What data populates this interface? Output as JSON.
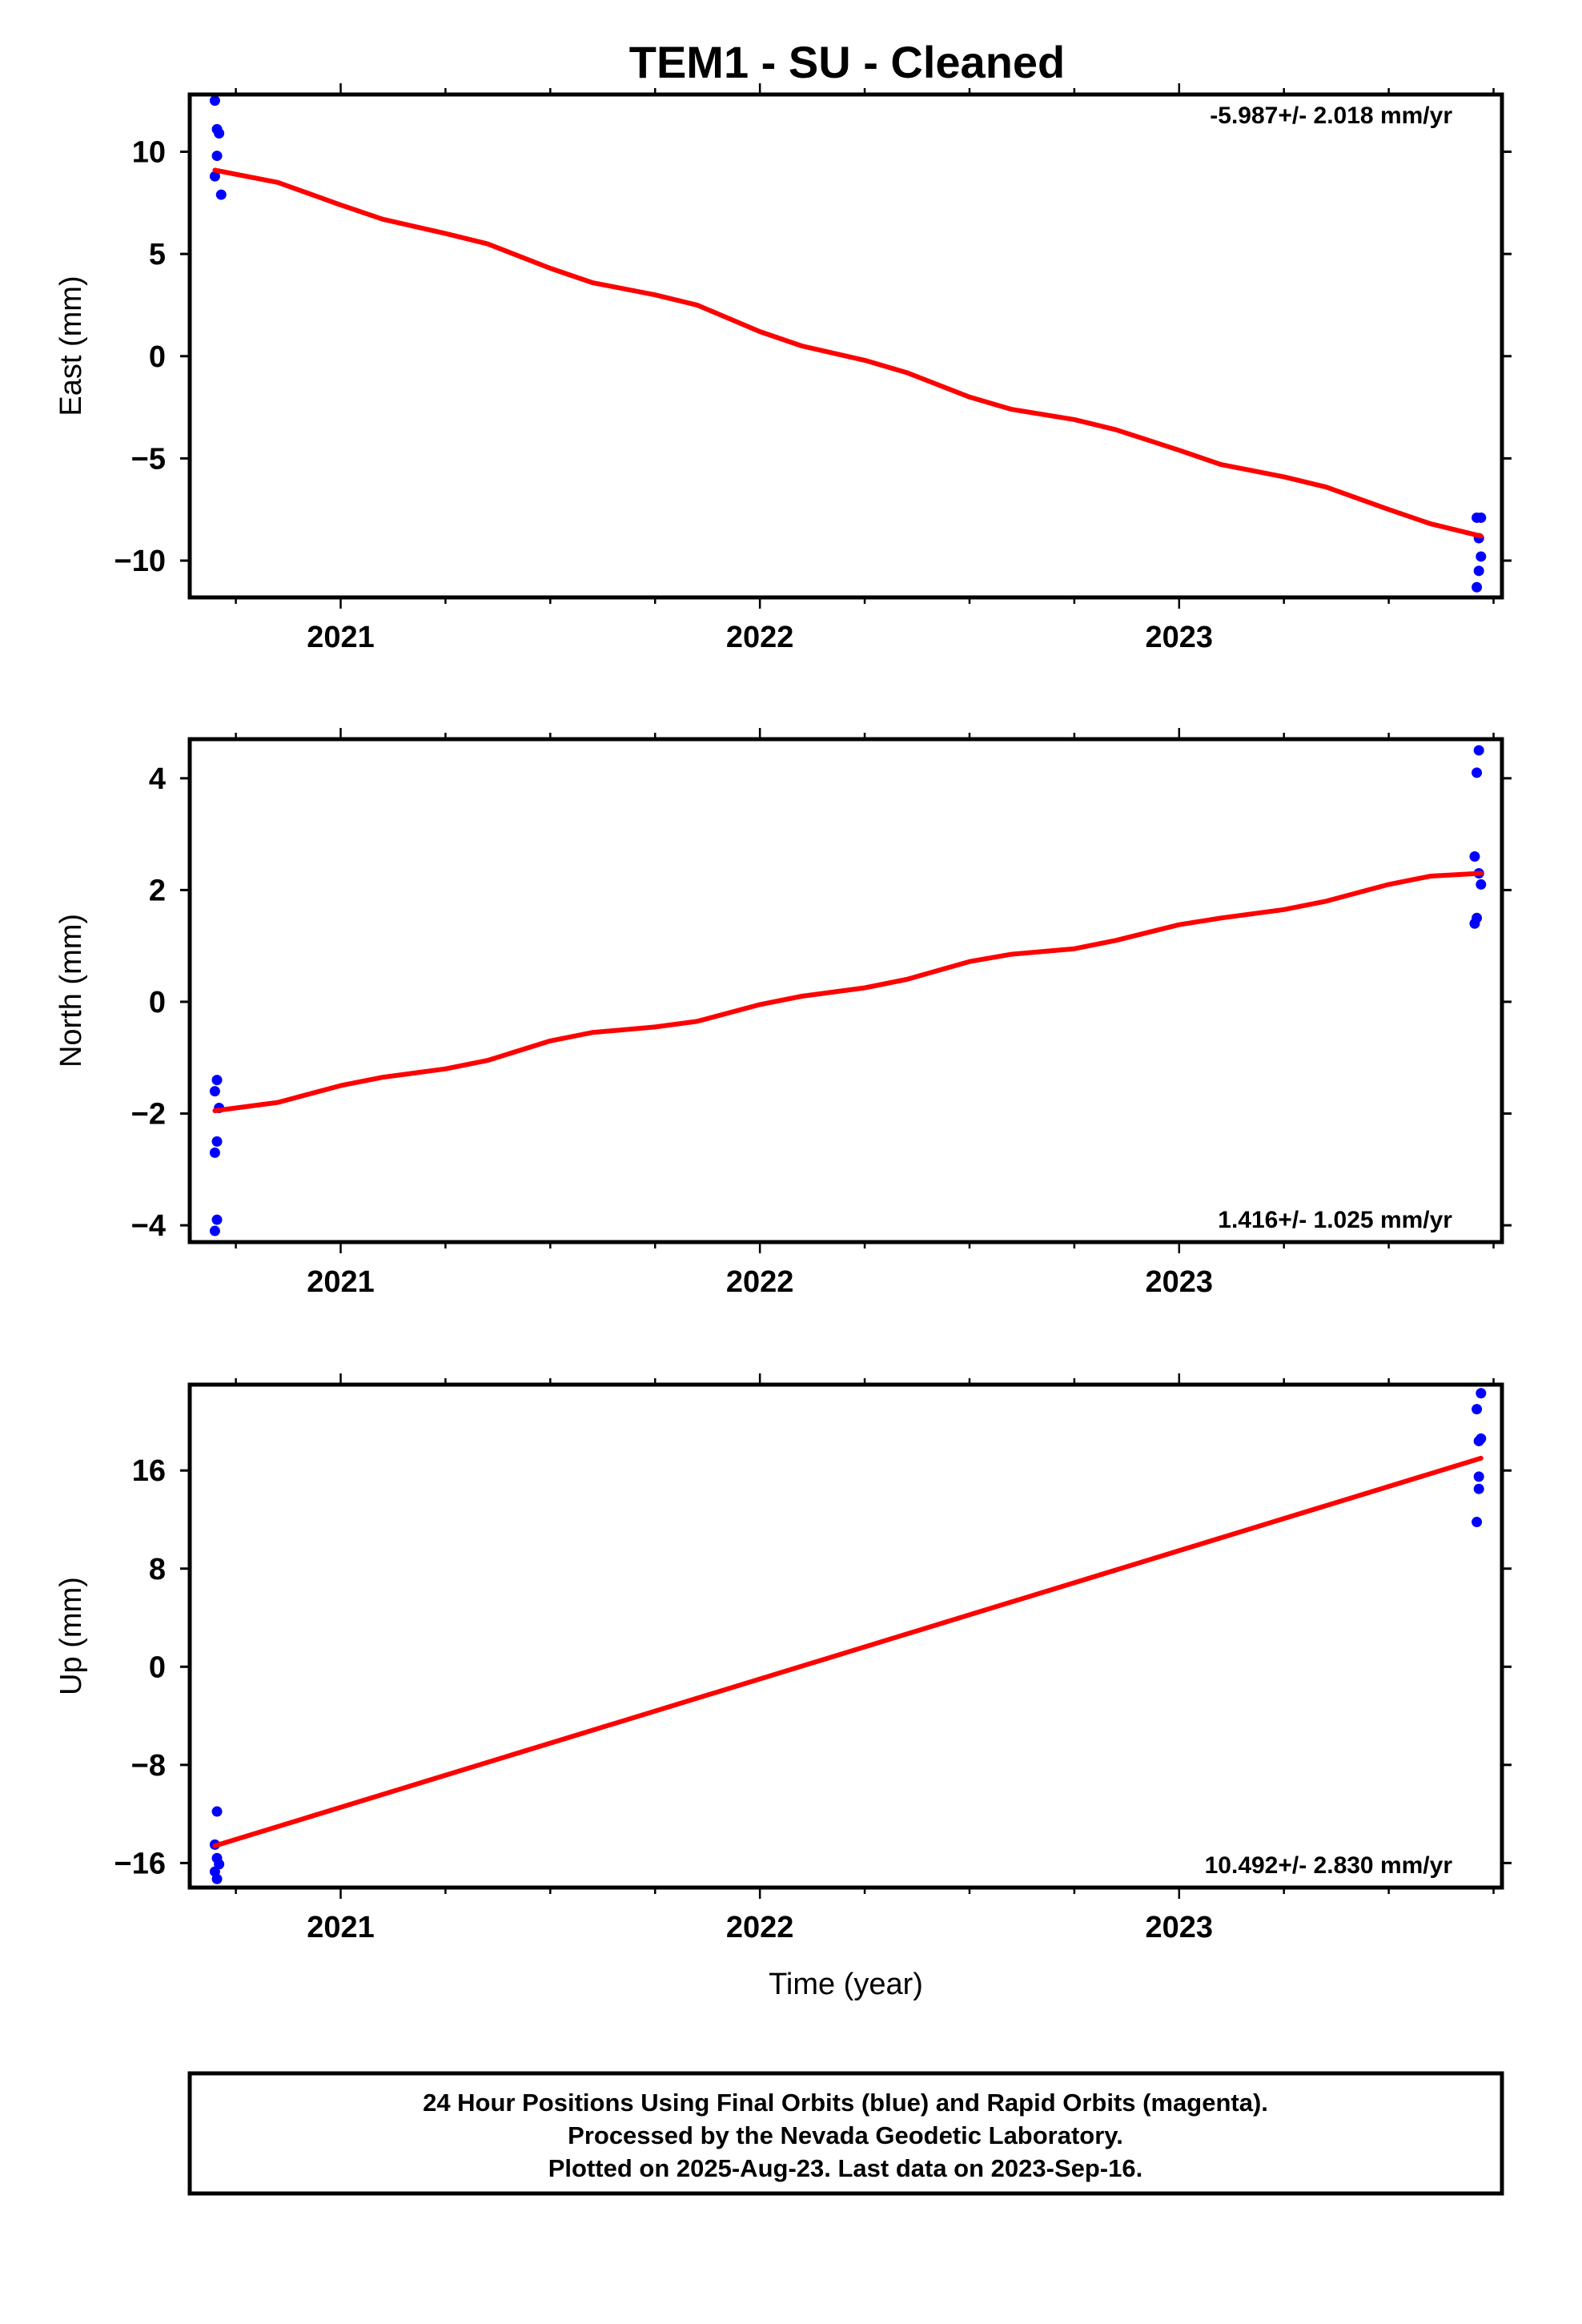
{
  "title": "TEM1  - SU - Cleaned",
  "colors": {
    "final_orbit": "#0000ff",
    "fit_line": "#ff0000",
    "frame": "#000000"
  },
  "footer": {
    "line1": "24 Hour Positions Using Final Orbits (blue) and Rapid Orbits (magenta).",
    "line2": "Processed by the Nevada Geodetic Laboratory.",
    "line3": "Plotted on 2025-Aug-23. Last data on 2023-Sep-16."
  },
  "chart_data": [
    {
      "type": "scatter",
      "ylabel": "East (mm)",
      "xlabel": "",
      "xlim": [
        2020.64,
        2023.77
      ],
      "ylim": [
        -11.8,
        12.8
      ],
      "xticks": [
        2021,
        2022,
        2023
      ],
      "xtick_labels": [
        "2021",
        "2022",
        "2023"
      ],
      "yticks": [
        -10,
        -5,
        0,
        5,
        10
      ],
      "ytick_labels": [
        "−10",
        "−5",
        "0",
        "5",
        "10"
      ],
      "rate": "-5.987+/- 2.018 mm/yr",
      "rate_position": "top-right",
      "series": [
        {
          "style": "points",
          "color": "#0000ff",
          "x": [
            2020.7,
            2020.705,
            2020.71,
            2020.705,
            2020.7,
            2020.715,
            2023.71,
            2023.715,
            2023.72,
            2023.715,
            2023.72,
            2023.71
          ],
          "y": [
            12.5,
            11.1,
            10.9,
            9.8,
            8.8,
            7.9,
            -7.9,
            -8.9,
            -9.8,
            -10.5,
            -7.9,
            -11.3
          ]
        },
        {
          "style": "line",
          "color": "#ff0000",
          "x": [
            2020.7,
            2020.85,
            2021.0,
            2021.1,
            2021.25,
            2021.35,
            2021.5,
            2021.6,
            2021.75,
            2021.85,
            2022.0,
            2022.1,
            2022.25,
            2022.35,
            2022.5,
            2022.6,
            2022.75,
            2022.85,
            2023.0,
            2023.1,
            2023.25,
            2023.35,
            2023.5,
            2023.6,
            2023.72
          ],
          "y": [
            9.1,
            8.5,
            7.4,
            6.7,
            6.0,
            5.5,
            4.3,
            3.6,
            3.0,
            2.5,
            1.2,
            0.5,
            -0.2,
            -0.8,
            -2.0,
            -2.6,
            -3.1,
            -3.6,
            -4.6,
            -5.3,
            -5.9,
            -6.4,
            -7.5,
            -8.2,
            -8.8
          ]
        }
      ]
    },
    {
      "type": "scatter",
      "ylabel": "North (mm)",
      "xlabel": "",
      "xlim": [
        2020.64,
        2023.77
      ],
      "ylim": [
        -4.3,
        4.7
      ],
      "xticks": [
        2021,
        2022,
        2023
      ],
      "xtick_labels": [
        "2021",
        "2022",
        "2023"
      ],
      "yticks": [
        -4,
        -2,
        0,
        2,
        4
      ],
      "ytick_labels": [
        "−4",
        "−2",
        "0",
        "2",
        "4"
      ],
      "rate": "1.416+/- 1.025 mm/yr",
      "rate_position": "bottom-right",
      "series": [
        {
          "style": "points",
          "color": "#0000ff",
          "x": [
            2020.705,
            2020.7,
            2020.71,
            2020.705,
            2020.7,
            2020.705,
            2020.7,
            2023.715,
            2023.71,
            2023.705,
            2023.715,
            2023.72,
            2023.71,
            2023.705
          ],
          "y": [
            -1.4,
            -1.6,
            -1.9,
            -2.5,
            -2.7,
            -3.9,
            -4.1,
            4.5,
            4.1,
            2.6,
            2.3,
            2.1,
            1.5,
            1.4
          ]
        },
        {
          "style": "line",
          "color": "#ff0000",
          "x": [
            2020.7,
            2020.85,
            2021.0,
            2021.1,
            2021.25,
            2021.35,
            2021.5,
            2021.6,
            2021.75,
            2021.85,
            2022.0,
            2022.1,
            2022.25,
            2022.35,
            2022.5,
            2022.6,
            2022.75,
            2022.85,
            2023.0,
            2023.1,
            2023.25,
            2023.35,
            2023.5,
            2023.6,
            2023.72
          ],
          "y": [
            -1.95,
            -1.8,
            -1.5,
            -1.35,
            -1.2,
            -1.05,
            -0.7,
            -0.55,
            -0.45,
            -0.35,
            -0.05,
            0.1,
            0.25,
            0.4,
            0.72,
            0.85,
            0.95,
            1.1,
            1.38,
            1.5,
            1.65,
            1.8,
            2.1,
            2.25,
            2.3
          ]
        }
      ]
    },
    {
      "type": "scatter",
      "ylabel": "Up (mm)",
      "xlabel": "Time (year)",
      "xlim": [
        2020.64,
        2023.77
      ],
      "ylim": [
        -18,
        23
      ],
      "xticks": [
        2021,
        2022,
        2023
      ],
      "xtick_labels": [
        "2021",
        "2022",
        "2023"
      ],
      "yticks": [
        -16,
        -8,
        0,
        8,
        16
      ],
      "ytick_labels": [
        "−16",
        "−8",
        "0",
        "8",
        "16"
      ],
      "rate": "10.492+/- 2.830 mm/yr",
      "rate_position": "bottom-right",
      "series": [
        {
          "style": "points",
          "color": "#0000ff",
          "x": [
            2020.705,
            2020.7,
            2020.705,
            2020.71,
            2020.7,
            2020.705,
            2023.72,
            2023.71,
            2023.72,
            2023.715,
            2023.715,
            2023.715,
            2023.71
          ],
          "y": [
            -11.8,
            -14.5,
            -15.6,
            -16.1,
            -16.7,
            -17.3,
            22.3,
            21.0,
            18.6,
            18.4,
            15.5,
            14.5,
            11.8
          ]
        },
        {
          "style": "line",
          "color": "#ff0000",
          "x": [
            2020.7,
            2023.72
          ],
          "y": [
            -14.6,
            17.0
          ]
        }
      ]
    }
  ]
}
